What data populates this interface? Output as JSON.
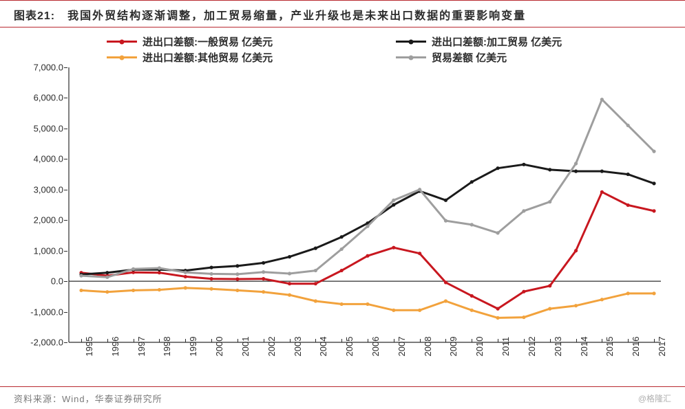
{
  "title_prefix": "图表21:",
  "title_text": "我国外贸结构逐渐调整，加工贸易缩量，产业升级也是未来出口数据的重要影响变量",
  "source": "资料来源：Wind，华泰证券研究所",
  "watermark": "@格隆汇",
  "chart": {
    "type": "line",
    "background_color": "#ffffff",
    "accent_color": "#b8292f",
    "ylim": [
      -2000,
      7000
    ],
    "ytick_step": 1000,
    "yticks": [
      "-2,000.0",
      "-1,000.0",
      "0.0",
      "1,000.0",
      "2,000.0",
      "3,000.0",
      "4,000.0",
      "5,000.0",
      "6,000.0",
      "7,000.0"
    ],
    "ytick_values": [
      -2000,
      -1000,
      0,
      1000,
      2000,
      3000,
      4000,
      5000,
      6000,
      7000
    ],
    "years": [
      "1995",
      "1996",
      "1997",
      "1998",
      "1999",
      "2000",
      "2001",
      "2002",
      "2003",
      "2004",
      "2005",
      "2006",
      "2007",
      "2008",
      "2009",
      "2010",
      "2011",
      "2012",
      "2013",
      "2014",
      "2015",
      "2016",
      "2017"
    ],
    "series": [
      {
        "name": "进出口差额:一般贸易 亿美元",
        "color": "#c8171f",
        "line_width": 3,
        "marker": "circle",
        "values": [
          280,
          180,
          290,
          280,
          150,
          80,
          70,
          80,
          -80,
          -80,
          350,
          830,
          1100,
          910,
          -40,
          -480,
          -900,
          -340,
          -150,
          1000,
          2920,
          2490,
          2300
        ]
      },
      {
        "name": "进出口差额:加工贸易 亿美元",
        "color": "#1a1a1a",
        "line_width": 3,
        "marker": "circle",
        "values": [
          220,
          280,
          380,
          380,
          350,
          450,
          500,
          600,
          800,
          1080,
          1450,
          1900,
          2500,
          2950,
          2650,
          3250,
          3700,
          3820,
          3650,
          3600,
          3600,
          3500,
          3200
        ]
      },
      {
        "name": "进出口差额:其他贸易 亿美元",
        "color": "#f2a23c",
        "line_width": 3,
        "marker": "circle",
        "values": [
          -300,
          -350,
          -300,
          -280,
          -220,
          -250,
          -300,
          -350,
          -450,
          -650,
          -750,
          -750,
          -950,
          -950,
          -650,
          -950,
          -1200,
          -1180,
          -900,
          -800,
          -600,
          -400,
          -400
        ]
      },
      {
        "name": "贸易差额 亿美元",
        "color": "#9e9e9e",
        "line_width": 3,
        "marker": "circle",
        "values": [
          180,
          130,
          400,
          430,
          290,
          240,
          230,
          300,
          250,
          350,
          1050,
          1800,
          2650,
          3000,
          1980,
          1850,
          1580,
          2300,
          2600,
          3850,
          5950,
          5100,
          4250
        ]
      }
    ],
    "legend_position": "top",
    "title_fontsize": 16,
    "label_fontsize": 13,
    "text_color": "#2c2c2c",
    "footer_color": "#7a7a7a"
  }
}
